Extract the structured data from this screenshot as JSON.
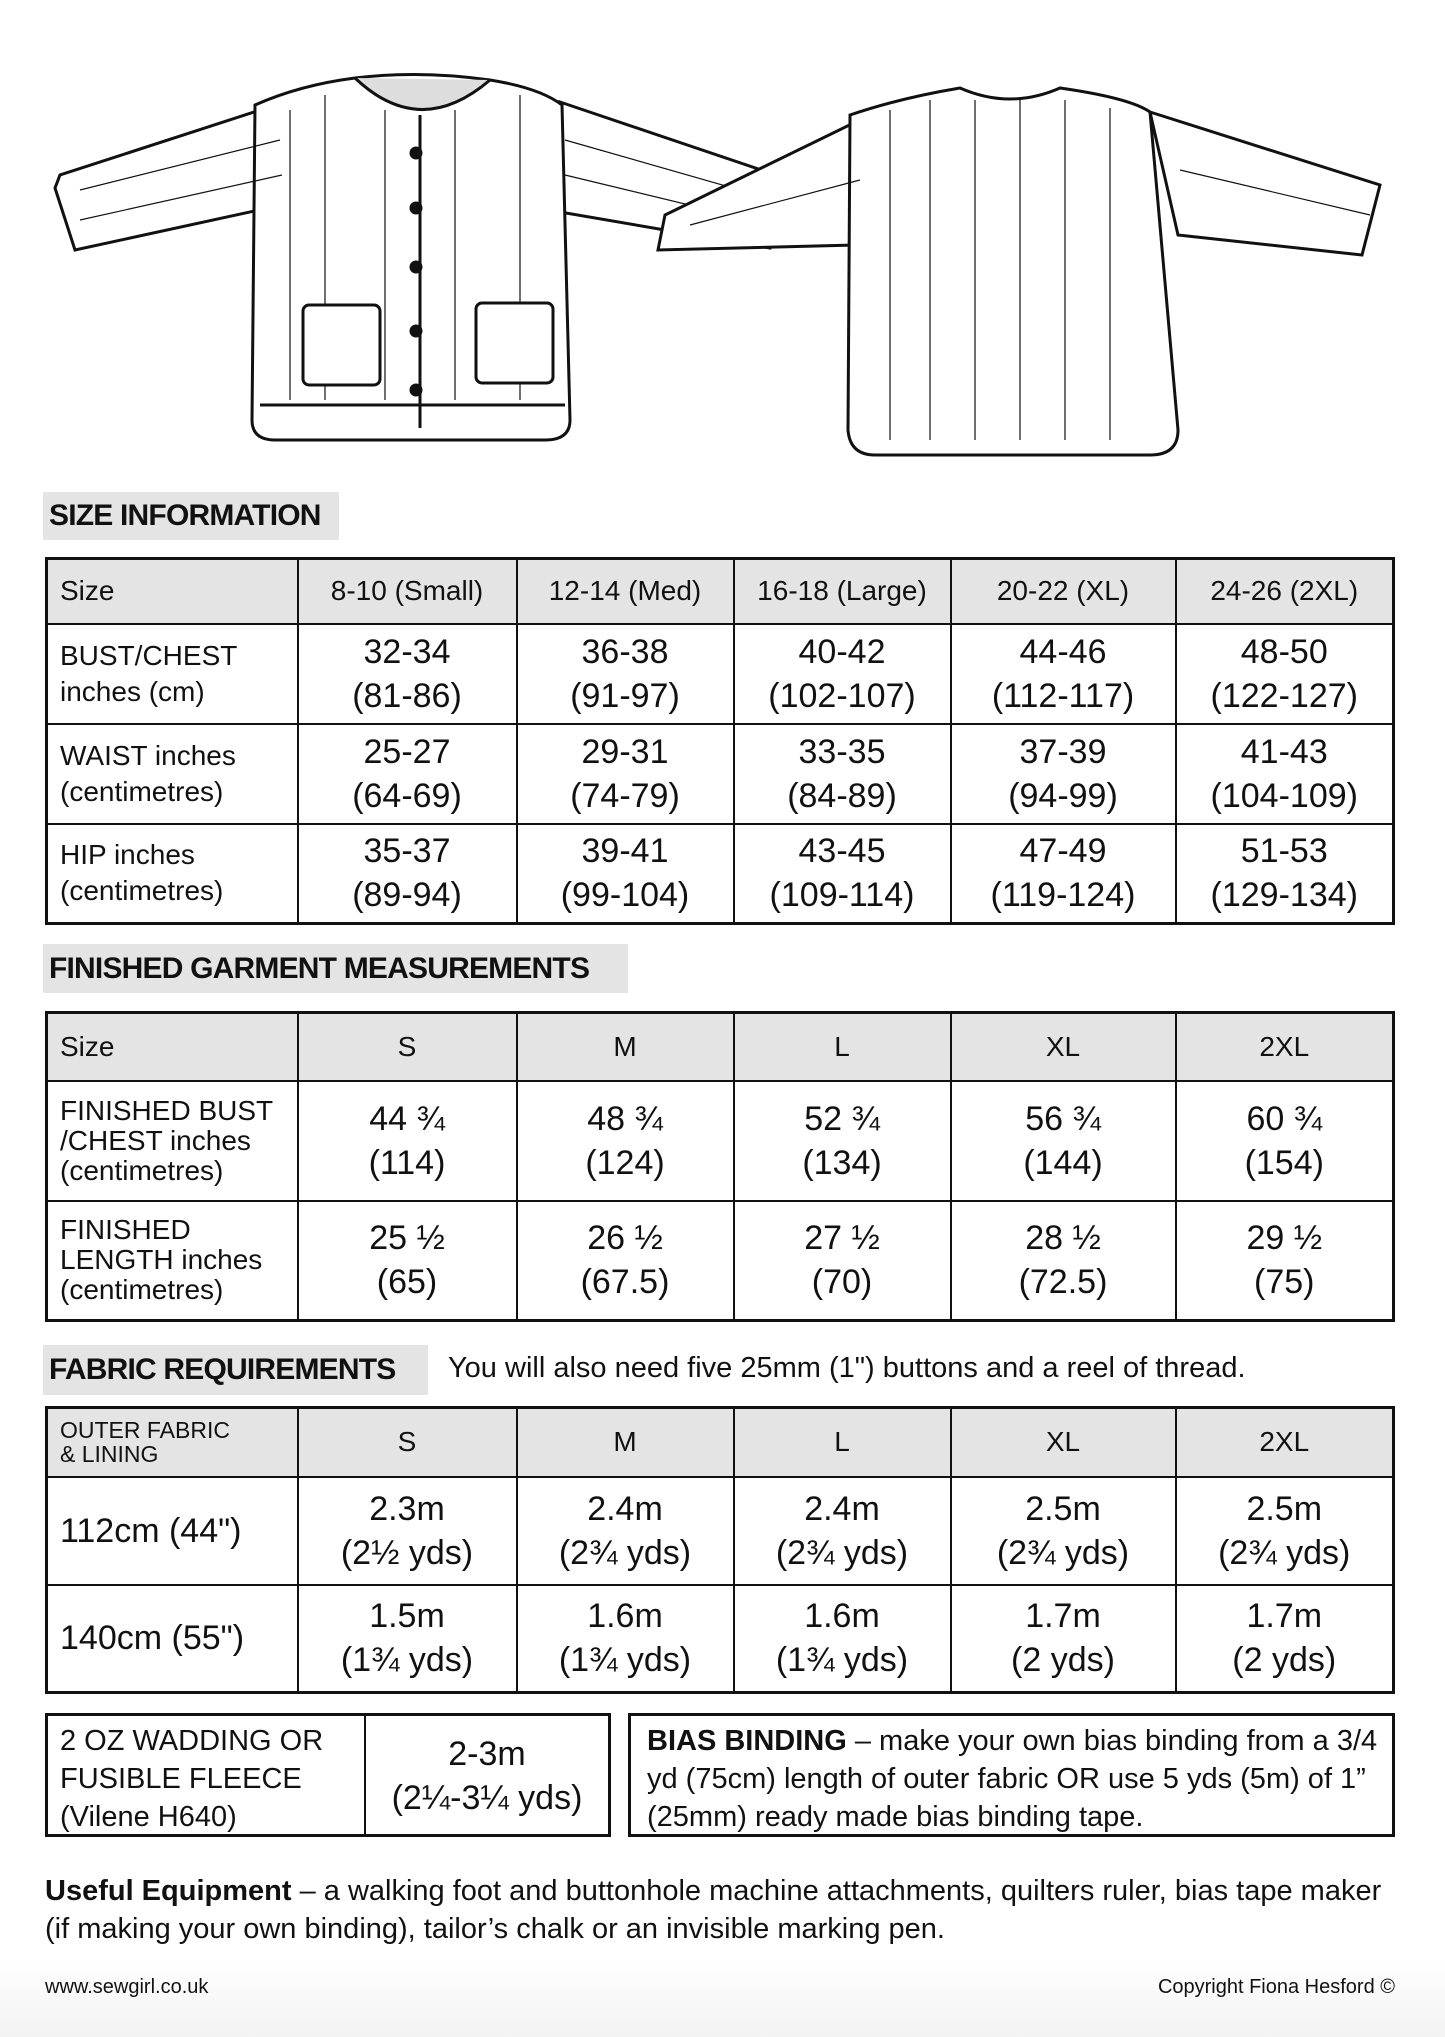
{
  "size_information": {
    "title": "SIZE INFORMATION",
    "headers": [
      "Size",
      "8-10 (Small)",
      "12-14 (Med)",
      "16-18 (Large)",
      "20-22 (XL)",
      "24-26 (2XL)"
    ],
    "rows": [
      {
        "label": [
          "BUST/CHEST",
          "inches (cm)"
        ],
        "values": [
          [
            "32-34",
            "(81-86)"
          ],
          [
            "36-38",
            "(91-97)"
          ],
          [
            "40-42",
            "(102-107)"
          ],
          [
            "44-46",
            "(112-117)"
          ],
          [
            "48-50",
            "(122-127)"
          ]
        ]
      },
      {
        "label": [
          "WAIST inches",
          "(centimetres)"
        ],
        "values": [
          [
            "25-27",
            "(64-69)"
          ],
          [
            "29-31",
            "(74-79)"
          ],
          [
            "33-35",
            "(84-89)"
          ],
          [
            "37-39",
            "(94-99)"
          ],
          [
            "41-43",
            "(104-109)"
          ]
        ]
      },
      {
        "label": [
          "HIP inches",
          "(centimetres)"
        ],
        "values": [
          [
            "35-37",
            "(89-94)"
          ],
          [
            "39-41",
            "(99-104)"
          ],
          [
            "43-45",
            "(109-114)"
          ],
          [
            "47-49",
            "(119-124)"
          ],
          [
            "51-53",
            "(129-134)"
          ]
        ]
      }
    ]
  },
  "finished_garment": {
    "title": "FINISHED GARMENT MEASUREMENTS",
    "headers": [
      "Size",
      "S",
      "M",
      "L",
      "XL",
      "2XL"
    ],
    "rows": [
      {
        "label": [
          "FINISHED BUST",
          "/CHEST inches",
          "(centimetres)"
        ],
        "values": [
          [
            "44 ¾",
            "(114)"
          ],
          [
            "48 ¾",
            "(124)"
          ],
          [
            "52 ¾",
            "(134)"
          ],
          [
            "56 ¾",
            "(144)"
          ],
          [
            "60 ¾",
            "(154)"
          ]
        ]
      },
      {
        "label": [
          "FINISHED",
          "LENGTH inches",
          "(centimetres)"
        ],
        "values": [
          [
            "25 ½",
            "(65)"
          ],
          [
            "26 ½",
            "(67.5)"
          ],
          [
            "27 ½",
            "(70)"
          ],
          [
            "28 ½",
            "(72.5)"
          ],
          [
            "29 ½",
            "(75)"
          ]
        ]
      }
    ]
  },
  "fabric_requirements": {
    "title": "FABRIC REQUIREMENTS",
    "note": "You will also need five 25mm (1\") buttons and a reel of thread.",
    "headers": [
      [
        "OUTER FABRIC",
        "& LINING"
      ],
      "S",
      "M",
      "L",
      "XL",
      "2XL"
    ],
    "rows": [
      {
        "label": "112cm (44\")",
        "values": [
          [
            "2.3m",
            "(2½ yds)"
          ],
          [
            "2.4m",
            "(2¾ yds)"
          ],
          [
            "2.4m",
            "(2¾ yds)"
          ],
          [
            "2.5m",
            "(2¾ yds)"
          ],
          [
            "2.5m",
            "(2¾ yds)"
          ]
        ]
      },
      {
        "label": "140cm (55\")",
        "values": [
          [
            "1.5m",
            "(1¾ yds)"
          ],
          [
            "1.6m",
            "(1¾ yds)"
          ],
          [
            "1.6m",
            "(1¾ yds)"
          ],
          [
            "1.7m",
            "(2 yds)"
          ],
          [
            "1.7m",
            "(2 yds)"
          ]
        ]
      }
    ]
  },
  "wadding": {
    "label": [
      "2 OZ WADDING OR",
      "FUSIBLE FLEECE",
      "(Vilene H640)"
    ],
    "value": [
      "2-3m",
      "(2¼-3¼ yds)"
    ]
  },
  "bias_binding": {
    "title": "BIAS BINDING",
    "text": " – make your own bias binding from a 3/4 yd (75cm) length of outer fabric OR use 5 yds (5m) of 1” (25mm) ready made bias binding tape."
  },
  "equipment": {
    "title": "Useful Equipment",
    "text": " – a walking foot and buttonhole machine attachments, quilters ruler, bias tape maker (if making your own binding), tailor’s chalk  or an invisible marking pen."
  },
  "footer": {
    "website": "www.sewgirl.co.uk",
    "copyright": "Copyright Fiona Hesford ©"
  }
}
